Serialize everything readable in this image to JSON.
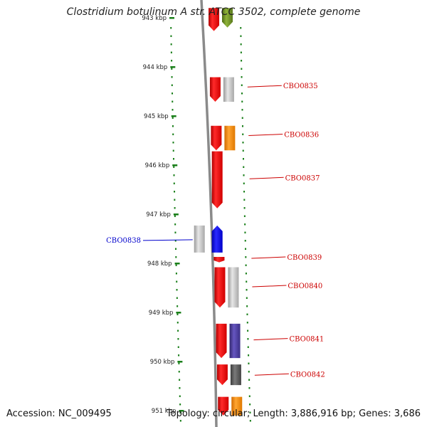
{
  "title": "Clostridium botulinum A str. ATCC 3502, complete genome",
  "footer": {
    "accession": "Accession: NC_009495",
    "summary": "Topology: circular; Length: 3,886,916 bp; Genes: 3,686"
  },
  "ruler": {
    "unit": "kbp",
    "ticks": [
      {
        "kbp": 943,
        "label": "943 kbp"
      },
      {
        "kbp": 944,
        "label": "944 kbp"
      },
      {
        "kbp": 945,
        "label": "945 kbp"
      },
      {
        "kbp": 946,
        "label": "946 kbp"
      },
      {
        "kbp": 947,
        "label": "947 kbp"
      },
      {
        "kbp": 948,
        "label": "948 kbp"
      },
      {
        "kbp": 949,
        "label": "949 kbp"
      },
      {
        "kbp": 950,
        "label": "950 kbp"
      },
      {
        "kbp": 951,
        "label": "951 kbp"
      }
    ]
  },
  "colors": {
    "cds": "#ff0000",
    "grey": "#c0c0c0",
    "olive": "#6b8e23",
    "orange": "#ff8c00",
    "blue": "#0000ff",
    "purple": "#4b3a9c",
    "darkgrey": "#555555",
    "label_red": "#cc0000",
    "label_blue": "#0000cc",
    "dots": "#1a7f1a",
    "backbone": "#8a8a8a"
  },
  "features": [
    {
      "id": "f0",
      "label": "",
      "start_kbp": 942.8,
      "end_kbp": 943.27,
      "ring": "cds",
      "color": "cds",
      "arrow": true
    },
    {
      "id": "f0b",
      "label": "",
      "start_kbp": 942.8,
      "end_kbp": 943.2,
      "ring": "cog",
      "color": "olive",
      "arrow": true
    },
    {
      "id": "f1",
      "label": "CBO0835",
      "start_kbp": 944.21,
      "end_kbp": 944.71,
      "ring": "cds",
      "color": "cds",
      "arrow": true,
      "label_kbp": 944.38
    },
    {
      "id": "f1b",
      "label": "",
      "start_kbp": 944.21,
      "end_kbp": 944.71,
      "ring": "cog",
      "color": "grey",
      "arrow": false
    },
    {
      "id": "f2",
      "label": "CBO0836",
      "start_kbp": 945.2,
      "end_kbp": 945.7,
      "ring": "cds",
      "color": "cds",
      "arrow": true,
      "label_kbp": 945.37
    },
    {
      "id": "f2b",
      "label": "",
      "start_kbp": 945.2,
      "end_kbp": 945.7,
      "ring": "cog",
      "color": "orange",
      "arrow": false
    },
    {
      "id": "f3",
      "label": "CBO0837",
      "start_kbp": 945.72,
      "end_kbp": 946.88,
      "ring": "cds",
      "color": "cds",
      "arrow": true,
      "label_kbp": 946.25
    },
    {
      "id": "f4",
      "label": "CBO0838",
      "start_kbp": 947.23,
      "end_kbp": 947.78,
      "ring": "cds_rev",
      "color": "blue",
      "arrow": true,
      "label_kbp": 947.52
    },
    {
      "id": "f4b",
      "label": "",
      "start_kbp": 947.23,
      "end_kbp": 947.78,
      "ring": "cog_rev",
      "color": "grey",
      "arrow": false
    },
    {
      "id": "f5",
      "label": "CBO0839",
      "start_kbp": 947.87,
      "end_kbp": 947.98,
      "ring": "cds",
      "color": "cds",
      "arrow": true,
      "label_kbp": 947.87
    },
    {
      "id": "f6",
      "label": "CBO0840",
      "start_kbp": 948.08,
      "end_kbp": 948.9,
      "ring": "cds",
      "color": "cds",
      "arrow": true,
      "label_kbp": 948.45
    },
    {
      "id": "f6b",
      "label": "",
      "start_kbp": 948.08,
      "end_kbp": 948.9,
      "ring": "cog",
      "color": "grey",
      "arrow": false
    },
    {
      "id": "f7",
      "label": "CBO0841",
      "start_kbp": 949.23,
      "end_kbp": 949.93,
      "ring": "cds",
      "color": "cds",
      "arrow": true,
      "label_kbp": 949.53
    },
    {
      "id": "f7b",
      "label": "",
      "start_kbp": 949.23,
      "end_kbp": 949.93,
      "ring": "cog",
      "color": "purple",
      "arrow": false
    },
    {
      "id": "f8",
      "label": "CBO0842",
      "start_kbp": 950.06,
      "end_kbp": 950.48,
      "ring": "cds",
      "color": "cds",
      "arrow": true,
      "label_kbp": 950.25
    },
    {
      "id": "f8b",
      "label": "",
      "start_kbp": 950.06,
      "end_kbp": 950.48,
      "ring": "cog",
      "color": "darkgrey",
      "arrow": false
    },
    {
      "id": "f9",
      "label": "",
      "start_kbp": 950.72,
      "end_kbp": 951.1,
      "ring": "cds",
      "color": "cds",
      "arrow": true
    },
    {
      "id": "f9b",
      "label": "",
      "start_kbp": 950.72,
      "end_kbp": 951.1,
      "ring": "cog",
      "color": "orange",
      "arrow": false
    }
  ]
}
